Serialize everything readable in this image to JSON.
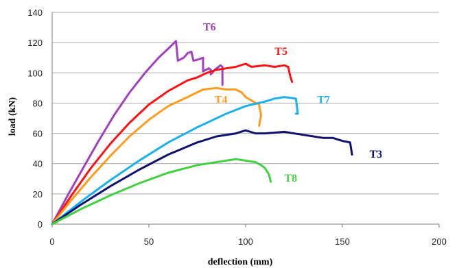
{
  "chart_data": {
    "type": "line",
    "title": "",
    "xlabel": "deflection (mm)",
    "ylabel": "load (kN)",
    "xlim": [
      0,
      200
    ],
    "ylim": [
      0,
      140
    ],
    "xticks": [
      0,
      50,
      100,
      150,
      200
    ],
    "yticks": [
      0,
      20,
      40,
      60,
      80,
      100,
      120,
      140
    ],
    "grid": "horizontal",
    "legend": "inline labels",
    "series": [
      {
        "name": "T6",
        "color": "#a040c0",
        "label_at": [
          78,
          128
        ],
        "points": [
          [
            0,
            0
          ],
          [
            8,
            19
          ],
          [
            16,
            37
          ],
          [
            24,
            55
          ],
          [
            32,
            72
          ],
          [
            40,
            87
          ],
          [
            48,
            100
          ],
          [
            55,
            110
          ],
          [
            60,
            116
          ],
          [
            64,
            121
          ],
          [
            65,
            108
          ],
          [
            68,
            110
          ],
          [
            70,
            113
          ],
          [
            72,
            114
          ],
          [
            73,
            108
          ],
          [
            76,
            109
          ],
          [
            78,
            110
          ],
          [
            78,
            101
          ],
          [
            81,
            103
          ],
          [
            82,
            102
          ],
          [
            82,
            99
          ],
          [
            84,
            102
          ],
          [
            87,
            105
          ],
          [
            88,
            104
          ],
          [
            88,
            92
          ]
        ]
      },
      {
        "name": "T5",
        "color": "#ff1010",
        "label_at": [
          115,
          112
        ],
        "points": [
          [
            0,
            0
          ],
          [
            10,
            19
          ],
          [
            20,
            37
          ],
          [
            30,
            53
          ],
          [
            40,
            67
          ],
          [
            50,
            79
          ],
          [
            60,
            88
          ],
          [
            70,
            95
          ],
          [
            75,
            97
          ],
          [
            80,
            100
          ],
          [
            85,
            102
          ],
          [
            90,
            103
          ],
          [
            95,
            104
          ],
          [
            100,
            106
          ],
          [
            103,
            104
          ],
          [
            110,
            105
          ],
          [
            115,
            104
          ],
          [
            120,
            105
          ],
          [
            122,
            104
          ],
          [
            123,
            98
          ],
          [
            124,
            94
          ]
        ]
      },
      {
        "name": "T4",
        "color": "#ff9a1a",
        "label_at": [
          84,
          80
        ],
        "points": [
          [
            0,
            0
          ],
          [
            10,
            16
          ],
          [
            20,
            31
          ],
          [
            30,
            45
          ],
          [
            40,
            58
          ],
          [
            50,
            69
          ],
          [
            60,
            78
          ],
          [
            70,
            84
          ],
          [
            78,
            89
          ],
          [
            85,
            90
          ],
          [
            90,
            89
          ],
          [
            95,
            89
          ],
          [
            98,
            87
          ],
          [
            100,
            84
          ],
          [
            104,
            81
          ],
          [
            107,
            79
          ],
          [
            108,
            72
          ],
          [
            107,
            65
          ]
        ]
      },
      {
        "name": "T7",
        "color": "#1ab0ee",
        "label_at": [
          137,
          80
        ],
        "points": [
          [
            0,
            0
          ],
          [
            15,
            15
          ],
          [
            30,
            29
          ],
          [
            45,
            42
          ],
          [
            60,
            54
          ],
          [
            75,
            64
          ],
          [
            90,
            73
          ],
          [
            100,
            78
          ],
          [
            110,
            81
          ],
          [
            115,
            83
          ],
          [
            120,
            84
          ],
          [
            126,
            83
          ],
          [
            127,
            73
          ],
          [
            126,
            73
          ]
        ]
      },
      {
        "name": "T3",
        "color": "#101070",
        "label_at": [
          164,
          44
        ],
        "points": [
          [
            0,
            0
          ],
          [
            15,
            13
          ],
          [
            30,
            25
          ],
          [
            45,
            36
          ],
          [
            60,
            46
          ],
          [
            75,
            54
          ],
          [
            85,
            58
          ],
          [
            95,
            60
          ],
          [
            100,
            62
          ],
          [
            105,
            60
          ],
          [
            110,
            60
          ],
          [
            120,
            61
          ],
          [
            130,
            59
          ],
          [
            135,
            58
          ],
          [
            140,
            57
          ],
          [
            145,
            57
          ],
          [
            150,
            55
          ],
          [
            154,
            54
          ],
          [
            155,
            46
          ]
        ]
      },
      {
        "name": "T8",
        "color": "#40d040",
        "label_at": [
          120,
          28
        ],
        "points": [
          [
            0,
            0
          ],
          [
            15,
            10
          ],
          [
            30,
            19
          ],
          [
            45,
            27
          ],
          [
            60,
            34
          ],
          [
            75,
            39
          ],
          [
            85,
            41
          ],
          [
            90,
            42
          ],
          [
            95,
            43
          ],
          [
            100,
            42
          ],
          [
            105,
            41
          ],
          [
            108,
            39
          ],
          [
            110,
            37
          ],
          [
            112,
            33
          ],
          [
            113,
            28
          ]
        ]
      }
    ]
  }
}
